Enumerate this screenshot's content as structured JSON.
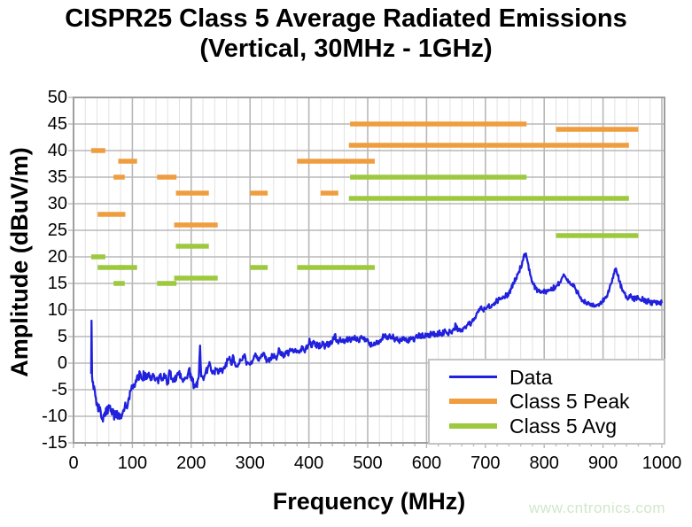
{
  "title": {
    "line1": "CISPR25 Class 5 Average Radiated Emissions",
    "line2": "(Vertical, 30MHz - 1GHz)"
  },
  "watermark": "www.cntronics.com",
  "colors": {
    "data_line": "#2020dd",
    "peak_limit": "#ef9d3f",
    "avg_limit": "#9dc93f",
    "grid_major": "#b8b8b8",
    "grid_minor": "#e2e2e2",
    "plot_border": "#9e9e9e",
    "watermark": "#cfe8c9",
    "text": "#000000"
  },
  "chart_data": {
    "type": "line",
    "title": "CISPR25 Class 5 Average Radiated Emissions (Vertical, 30MHz - 1GHz)",
    "xlabel": "Frequency (MHz)",
    "ylabel": "Amplitude (dBuV/m)",
    "xlim": [
      0,
      1003
    ],
    "ylim": [
      -15,
      50
    ],
    "x_ticks": [
      0,
      100,
      200,
      300,
      400,
      500,
      600,
      700,
      800,
      900,
      1000
    ],
    "y_ticks": [
      50,
      45,
      40,
      35,
      30,
      25,
      20,
      15,
      10,
      5,
      0,
      -5,
      -10,
      -15
    ],
    "x_minor_step": 20,
    "grid": true,
    "legend": {
      "position": "bottom-right",
      "entries": [
        {
          "label": "Data",
          "color": "#2020dd"
        },
        {
          "label": "Class 5 Peak",
          "color": "#ef9d3f"
        },
        {
          "label": "Class 5 Avg",
          "color": "#9dc93f"
        }
      ]
    },
    "series": [
      {
        "name": "Data",
        "type": "noisy-line",
        "color": "#2020dd",
        "points": [
          [
            30,
            -2
          ],
          [
            30.5,
            8
          ],
          [
            31.5,
            -2.5
          ],
          [
            33,
            -3.5
          ],
          [
            36,
            -5
          ],
          [
            40,
            -7.5
          ],
          [
            44,
            -9
          ],
          [
            48,
            -10.5
          ],
          [
            50,
            -11
          ],
          [
            52,
            -10
          ],
          [
            55,
            -8.5
          ],
          [
            58,
            -9.5
          ],
          [
            62,
            -8
          ],
          [
            66,
            -9.5
          ],
          [
            70,
            -10
          ],
          [
            74,
            -9
          ],
          [
            78,
            -10.5
          ],
          [
            82,
            -10
          ],
          [
            86,
            -9
          ],
          [
            90,
            -8
          ],
          [
            94,
            -6.5
          ],
          [
            98,
            -5
          ],
          [
            102,
            -4
          ],
          [
            106,
            -3.2
          ],
          [
            110,
            -3
          ],
          [
            113,
            -1.8
          ],
          [
            116,
            -3
          ],
          [
            120,
            -2.2
          ],
          [
            124,
            -3
          ],
          [
            128,
            -1.8
          ],
          [
            132,
            -2.8
          ],
          [
            136,
            -2.2
          ],
          [
            140,
            -3
          ],
          [
            144,
            -3.8
          ],
          [
            148,
            -2
          ],
          [
            152,
            -3.2
          ],
          [
            156,
            -2.5
          ],
          [
            160,
            -3.5
          ],
          [
            164,
            -1.8
          ],
          [
            168,
            -3
          ],
          [
            172,
            -3.5
          ],
          [
            176,
            -2
          ],
          [
            180,
            -1.5
          ],
          [
            184,
            -3
          ],
          [
            188,
            -3.2
          ],
          [
            192,
            -2.8
          ],
          [
            196,
            -1.2
          ],
          [
            200,
            -3.2
          ],
          [
            205,
            -4
          ],
          [
            210,
            -4.5
          ],
          [
            213,
            -2.5
          ],
          [
            215,
            3.3
          ],
          [
            217,
            -2.5
          ],
          [
            220,
            -2.8
          ],
          [
            224,
            -2
          ],
          [
            228,
            -1
          ],
          [
            231,
            0.2
          ],
          [
            234,
            -1.5
          ],
          [
            238,
            -1.8
          ],
          [
            242,
            -1.2
          ],
          [
            246,
            -2
          ],
          [
            250,
            -1.5
          ],
          [
            254,
            -1.2
          ],
          [
            258,
            -0.5
          ],
          [
            262,
            0.5
          ],
          [
            265,
            1.2
          ],
          [
            268,
            -0.3
          ],
          [
            271,
            1.5
          ],
          [
            274,
            0.2
          ],
          [
            278,
            -0.5
          ],
          [
            282,
            0
          ],
          [
            286,
            0.5
          ],
          [
            290,
            1.6
          ],
          [
            294,
            -0.3
          ],
          [
            298,
            0
          ],
          [
            302,
            0.3
          ],
          [
            306,
            0.8
          ],
          [
            310,
            1.6
          ],
          [
            314,
            0.5
          ],
          [
            318,
            1
          ],
          [
            322,
            1.8
          ],
          [
            326,
            0.8
          ],
          [
            330,
            0.4
          ],
          [
            334,
            1
          ],
          [
            338,
            1.4
          ],
          [
            342,
            1
          ],
          [
            346,
            1.2
          ],
          [
            350,
            2.6
          ],
          [
            354,
            1.4
          ],
          [
            358,
            1.6
          ],
          [
            362,
            1.8
          ],
          [
            366,
            2
          ],
          [
            370,
            2.3
          ],
          [
            374,
            2
          ],
          [
            378,
            2.4
          ],
          [
            382,
            2.2
          ],
          [
            386,
            2.6
          ],
          [
            390,
            3
          ],
          [
            394,
            2.4
          ],
          [
            398,
            3
          ],
          [
            401,
            4.6
          ],
          [
            404,
            3
          ],
          [
            408,
            4.2
          ],
          [
            412,
            3.2
          ],
          [
            416,
            3.4
          ],
          [
            420,
            3.2
          ],
          [
            424,
            3.6
          ],
          [
            428,
            3.2
          ],
          [
            432,
            3.6
          ],
          [
            436,
            3.8
          ],
          [
            440,
            4
          ],
          [
            444,
            5.4
          ],
          [
            448,
            4
          ],
          [
            452,
            4.2
          ],
          [
            456,
            4
          ],
          [
            460,
            4.4
          ],
          [
            464,
            4.2
          ],
          [
            468,
            4.5
          ],
          [
            472,
            4.2
          ],
          [
            476,
            4.4
          ],
          [
            480,
            4.6
          ],
          [
            484,
            4.4
          ],
          [
            488,
            4.7
          ],
          [
            492,
            4.5
          ],
          [
            496,
            4.6
          ],
          [
            500,
            4.5
          ],
          [
            504,
            3.8
          ],
          [
            508,
            3.3
          ],
          [
            512,
            3.5
          ],
          [
            516,
            3.8
          ],
          [
            520,
            4.2
          ],
          [
            524,
            4.6
          ],
          [
            528,
            5
          ],
          [
            532,
            4.6
          ],
          [
            536,
            4.9
          ],
          [
            540,
            5
          ],
          [
            544,
            4.7
          ],
          [
            548,
            4.4
          ],
          [
            552,
            4.1
          ],
          [
            556,
            4.3
          ],
          [
            560,
            4.4
          ],
          [
            564,
            4.6
          ],
          [
            568,
            4.4
          ],
          [
            572,
            4.5
          ],
          [
            576,
            4.6
          ],
          [
            580,
            4.7
          ],
          [
            584,
            4.9
          ],
          [
            588,
            5
          ],
          [
            592,
            5.1
          ],
          [
            596,
            5
          ],
          [
            600,
            5.2
          ],
          [
            605,
            5.5
          ],
          [
            610,
            5.3
          ],
          [
            615,
            5.5
          ],
          [
            620,
            5.4
          ],
          [
            625,
            5.6
          ],
          [
            630,
            5.9
          ],
          [
            635,
            5.7
          ],
          [
            640,
            6
          ],
          [
            645,
            6.2
          ],
          [
            650,
            7.2
          ],
          [
            653,
            6
          ],
          [
            656,
            6.1
          ],
          [
            660,
            6.3
          ],
          [
            664,
            6.6
          ],
          [
            668,
            7
          ],
          [
            672,
            7.3
          ],
          [
            676,
            7.6
          ],
          [
            680,
            8
          ],
          [
            684,
            8.8
          ],
          [
            688,
            9.6
          ],
          [
            692,
            10.6
          ],
          [
            696,
            10
          ],
          [
            700,
            10.2
          ],
          [
            704,
            10.8
          ],
          [
            708,
            10.4
          ],
          [
            712,
            11
          ],
          [
            716,
            11.4
          ],
          [
            720,
            11.6
          ],
          [
            724,
            12
          ],
          [
            728,
            12.2
          ],
          [
            732,
            12.4
          ],
          [
            736,
            12.8
          ],
          [
            740,
            13.2
          ],
          [
            744,
            14
          ],
          [
            748,
            15
          ],
          [
            752,
            16
          ],
          [
            756,
            17
          ],
          [
            760,
            18
          ],
          [
            764,
            19.3
          ],
          [
            768,
            20.6
          ],
          [
            771,
            19.5
          ],
          [
            774,
            17.5
          ],
          [
            778,
            16
          ],
          [
            782,
            14.8
          ],
          [
            786,
            14
          ],
          [
            790,
            13.6
          ],
          [
            794,
            13.2
          ],
          [
            798,
            13.6
          ],
          [
            802,
            13.2
          ],
          [
            806,
            13.5
          ],
          [
            810,
            13.8
          ],
          [
            814,
            14
          ],
          [
            818,
            14.2
          ],
          [
            822,
            14.6
          ],
          [
            826,
            15.2
          ],
          [
            830,
            16
          ],
          [
            834,
            16.6
          ],
          [
            838,
            15.8
          ],
          [
            842,
            15.2
          ],
          [
            846,
            14.8
          ],
          [
            850,
            14.4
          ],
          [
            854,
            13.8
          ],
          [
            858,
            13.2
          ],
          [
            862,
            12.4
          ],
          [
            866,
            11.8
          ],
          [
            870,
            11.4
          ],
          [
            874,
            11.1
          ],
          [
            878,
            10.9
          ],
          [
            882,
            10.7
          ],
          [
            886,
            10.8
          ],
          [
            890,
            11
          ],
          [
            894,
            11.2
          ],
          [
            898,
            11.4
          ],
          [
            902,
            12
          ],
          [
            906,
            12.6
          ],
          [
            910,
            13.4
          ],
          [
            914,
            15
          ],
          [
            918,
            16.8
          ],
          [
            921,
            17.6
          ],
          [
            924,
            16.8
          ],
          [
            928,
            15.4
          ],
          [
            932,
            14
          ],
          [
            936,
            13.2
          ],
          [
            940,
            12.6
          ],
          [
            944,
            12.2
          ],
          [
            948,
            12.5
          ],
          [
            952,
            12.1
          ],
          [
            956,
            12.3
          ],
          [
            960,
            12.1
          ],
          [
            964,
            11.9
          ],
          [
            968,
            12
          ],
          [
            972,
            11.6
          ],
          [
            976,
            11.8
          ],
          [
            980,
            11.6
          ],
          [
            984,
            11.4
          ],
          [
            988,
            11.5
          ],
          [
            992,
            11.4
          ],
          [
            996,
            11.5
          ],
          [
            1000,
            11.3
          ]
        ]
      },
      {
        "name": "Class 5 Peak",
        "type": "limit-segments",
        "color": "#ef9d3f",
        "segments": [
          [
            30,
            54,
            40
          ],
          [
            41,
            88,
            28
          ],
          [
            68,
            87,
            35
          ],
          [
            76,
            108,
            38
          ],
          [
            142,
            175,
            35
          ],
          [
            171,
            245,
            26
          ],
          [
            174,
            230,
            32
          ],
          [
            300,
            330,
            32
          ],
          [
            380,
            512,
            38
          ],
          [
            420,
            450,
            32
          ],
          [
            468,
            944,
            41
          ],
          [
            470,
            770,
            45
          ],
          [
            820,
            960,
            44
          ]
        ]
      },
      {
        "name": "Class 5 Avg",
        "type": "limit-segments",
        "color": "#9dc93f",
        "segments": [
          [
            30,
            54,
            20
          ],
          [
            41,
            88,
            18
          ],
          [
            68,
            87,
            15
          ],
          [
            76,
            108,
            18
          ],
          [
            142,
            175,
            15
          ],
          [
            171,
            245,
            16
          ],
          [
            174,
            230,
            22
          ],
          [
            300,
            330,
            18
          ],
          [
            380,
            512,
            18
          ],
          [
            468,
            944,
            31
          ],
          [
            470,
            770,
            35
          ],
          [
            820,
            960,
            24
          ]
        ]
      }
    ]
  }
}
